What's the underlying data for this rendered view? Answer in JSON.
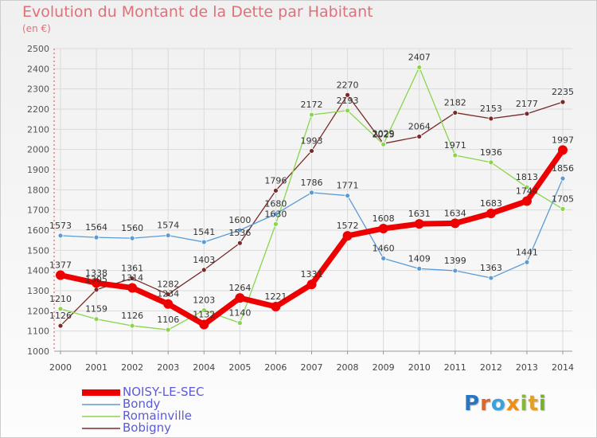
{
  "chart_data": {
    "type": "line",
    "title": "Evolution du Montant de la Dette par Habitant",
    "subtitle": "(en €)",
    "x": [
      "2000",
      "2001",
      "2002",
      "2003",
      "2004",
      "2005",
      "2006",
      "2007",
      "2008",
      "2009",
      "2010",
      "2011",
      "2012",
      "2013",
      "2014"
    ],
    "ylim": [
      1000,
      2500
    ],
    "yticks": [
      1000,
      1100,
      1200,
      1300,
      1400,
      1500,
      1600,
      1700,
      1800,
      1900,
      2000,
      2100,
      2200,
      2300,
      2400,
      2500
    ],
    "grid": true,
    "legend_position": "bottom-left",
    "series": [
      {
        "name": "NOISY-LE-SEC",
        "color": "#ee0000",
        "values": [
          1377,
          1338,
          1314,
          1234,
          1132,
          1264,
          1221,
          1331,
          1572,
          1608,
          1631,
          1634,
          1683,
          1744,
          1997
        ],
        "labels": [
          "1377",
          "1338",
          "1314",
          "1234",
          "1132",
          "1264",
          "1221",
          "1331",
          "1572",
          "1608",
          "1631",
          "1634",
          "1683",
          "1744",
          "1997"
        ]
      },
      {
        "name": "Bondy",
        "color": "#5b9bd5",
        "values": [
          1573,
          1564,
          1560,
          1574,
          1541,
          1600,
          1680,
          1786,
          1771,
          1460,
          1409,
          1399,
          1363,
          1441,
          1856
        ],
        "labels": [
          "1573",
          "1564",
          "1560",
          "1574",
          "1541",
          "1600",
          "1680",
          "1786",
          "1771",
          "1460",
          "1409",
          "1399",
          "1363",
          "1441",
          "1856"
        ]
      },
      {
        "name": "Romainville",
        "color": "#88d64a",
        "values": [
          1210,
          1159,
          1126,
          1106,
          1203,
          1140,
          1630,
          2172,
          2193,
          2025,
          2407,
          1971,
          1936,
          1813,
          1705
        ],
        "labels": [
          "1210",
          "1159",
          "1126",
          "1106",
          "1203",
          "1140",
          "1630",
          "2172",
          "2193",
          "2025",
          "2407",
          "1971",
          "1936",
          "1813",
          "1705"
        ]
      },
      {
        "name": "Bobigny",
        "color": "#7a2a2a",
        "values": [
          1126,
          1305,
          1361,
          1282,
          1403,
          1536,
          1796,
          1993,
          2270,
          2029,
          2064,
          2182,
          2153,
          2177,
          2235
        ],
        "labels": [
          "1126",
          "1305",
          "1361",
          "1282",
          "1403",
          "1536",
          "1796",
          "1993",
          "2270",
          "2029",
          "2064",
          "2182",
          "2153",
          "2177",
          "2235"
        ]
      }
    ]
  },
  "logo": {
    "text_parts": [
      "P",
      "r",
      "o",
      "x",
      "i",
      "t",
      "i"
    ]
  }
}
